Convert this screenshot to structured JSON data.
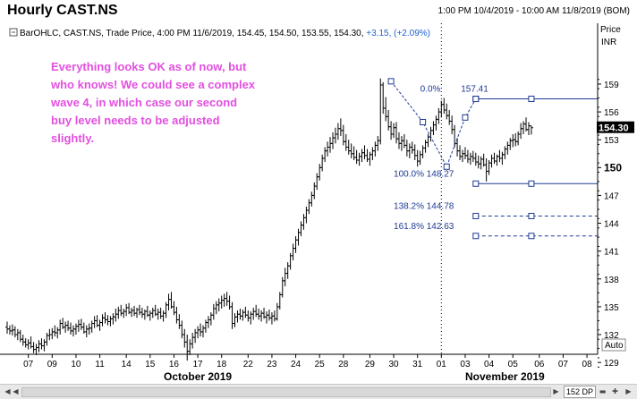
{
  "window": {
    "title": "Hourly CAST.NS",
    "date_range": "1:00 PM 10/4/2019 - 10:00 AM 11/8/2019 (BOM)"
  },
  "legend": {
    "text": "BarOHLC, CAST.NS, Trade Price, 4:00 PM 11/6/2019, 154.45, 154.50, 153.55, 154.30, ",
    "change": "+3.15, (+2.09%)"
  },
  "annotation": {
    "lines": [
      "Everything looks OK as of now, but",
      "who knows! We could see a complex",
      "wave 4, in which case our second",
      "buy level needs to be adjusted",
      "slightly."
    ]
  },
  "axis": {
    "price_label": "Price",
    "unit_label": "INR",
    "auto_label": "Auto",
    "last_price": "154.30"
  },
  "zoom": {
    "dp_label": "152 DP"
  },
  "chart_data": {
    "type": "ohlc",
    "title": "Hourly CAST.NS",
    "ylim": [
      128,
      160
    ],
    "y_ticks": [
      129,
      132,
      135,
      138,
      141,
      144,
      147,
      150,
      153,
      156,
      159
    ],
    "y_tick_labels": [
      "129",
      "132",
      "135",
      "138",
      "141",
      "144",
      "147",
      "150",
      "153",
      "156",
      "159"
    ],
    "bold_tick": "150",
    "x_ticks": [
      {
        "label": "07",
        "idx": 8
      },
      {
        "label": "09",
        "idx": 17
      },
      {
        "label": "10",
        "idx": 26
      },
      {
        "label": "11",
        "idx": 35
      },
      {
        "label": "14",
        "idx": 45
      },
      {
        "label": "15",
        "idx": 54
      },
      {
        "label": "16",
        "idx": 63
      },
      {
        "label": "17",
        "idx": 72
      },
      {
        "label": "18",
        "idx": 81
      },
      {
        "label": "22",
        "idx": 91
      },
      {
        "label": "23",
        "idx": 100
      },
      {
        "label": "24",
        "idx": 109
      },
      {
        "label": "25",
        "idx": 118
      },
      {
        "label": "28",
        "idx": 127
      },
      {
        "label": "29",
        "idx": 137
      },
      {
        "label": "30",
        "idx": 146
      },
      {
        "label": "31",
        "idx": 155
      },
      {
        "label": "01",
        "idx": 164
      },
      {
        "label": "03",
        "idx": 173
      },
      {
        "label": "04",
        "idx": 182
      },
      {
        "label": "05",
        "idx": 191
      },
      {
        "label": "06",
        "idx": 201
      },
      {
        "label": "07",
        "idx": 210
      },
      {
        "label": "08",
        "idx": 219
      }
    ],
    "month_labels": [
      {
        "label": "October 2019",
        "idx": 72
      },
      {
        "label": "November 2019",
        "idx": 188
      }
    ],
    "month_separators": [
      164
    ],
    "x_domain": [
      0,
      221
    ],
    "bars": [
      [
        132.8,
        133.4,
        132.1,
        132.6
      ],
      [
        132.6,
        133.0,
        132.0,
        132.4
      ],
      [
        132.4,
        133.1,
        131.9,
        132.5
      ],
      [
        132.5,
        132.9,
        131.7,
        132.0
      ],
      [
        132.0,
        132.6,
        131.4,
        132.2
      ],
      [
        132.2,
        132.5,
        131.2,
        131.5
      ],
      [
        131.5,
        132.0,
        130.8,
        131.2
      ],
      [
        131.2,
        131.6,
        130.6,
        130.9
      ],
      [
        130.9,
        131.5,
        130.4,
        131.1
      ],
      [
        131.1,
        131.8,
        130.5,
        130.7
      ],
      [
        130.7,
        131.2,
        130.0,
        130.4
      ],
      [
        130.4,
        131.0,
        129.8,
        130.6
      ],
      [
        130.6,
        131.4,
        130.1,
        131.0
      ],
      [
        131.0,
        131.6,
        130.4,
        130.8
      ],
      [
        130.8,
        131.5,
        130.2,
        131.2
      ],
      [
        131.2,
        132.2,
        130.8,
        131.9
      ],
      [
        131.9,
        132.6,
        131.4,
        132.0
      ],
      [
        132.0,
        132.7,
        131.5,
        132.3
      ],
      [
        132.3,
        133.0,
        131.8,
        132.2
      ],
      [
        132.2,
        132.8,
        131.6,
        132.5
      ],
      [
        132.5,
        133.6,
        132.0,
        133.2
      ],
      [
        133.2,
        133.8,
        132.6,
        132.8
      ],
      [
        132.8,
        133.4,
        132.2,
        133.0
      ],
      [
        133.0,
        133.5,
        132.4,
        132.7
      ],
      [
        132.7,
        133.3,
        132.0,
        132.4
      ],
      [
        132.4,
        133.0,
        131.8,
        132.6
      ],
      [
        132.6,
        133.2,
        132.0,
        132.9
      ],
      [
        132.9,
        133.6,
        132.3,
        133.1
      ],
      [
        133.1,
        133.7,
        132.5,
        132.8
      ],
      [
        132.8,
        133.3,
        132.1,
        132.3
      ],
      [
        132.3,
        133.0,
        131.7,
        132.6
      ],
      [
        132.6,
        133.2,
        132.0,
        132.7
      ],
      [
        132.7,
        133.5,
        132.2,
        133.2
      ],
      [
        133.2,
        134.0,
        132.7,
        133.5
      ],
      [
        133.5,
        134.1,
        132.8,
        133.0
      ],
      [
        133.0,
        133.6,
        132.4,
        133.3
      ],
      [
        133.3,
        134.2,
        132.9,
        133.8
      ],
      [
        133.8,
        134.4,
        133.2,
        133.6
      ],
      [
        133.6,
        134.1,
        133.0,
        133.4
      ],
      [
        133.4,
        134.0,
        132.9,
        133.7
      ],
      [
        133.7,
        134.3,
        133.1,
        133.9
      ],
      [
        133.9,
        134.8,
        133.4,
        134.2
      ],
      [
        134.2,
        135.0,
        133.7,
        134.6
      ],
      [
        134.6,
        135.2,
        134.0,
        134.3
      ],
      [
        134.3,
        134.8,
        133.8,
        134.5
      ],
      [
        134.5,
        135.3,
        134.0,
        134.9
      ],
      [
        134.9,
        135.4,
        134.2,
        134.4
      ],
      [
        134.4,
        134.9,
        133.9,
        134.6
      ],
      [
        134.6,
        135.1,
        134.0,
        134.3
      ],
      [
        134.3,
        134.9,
        133.8,
        134.7
      ],
      [
        134.7,
        135.2,
        134.1,
        134.4
      ],
      [
        134.4,
        134.9,
        133.8,
        134.2
      ],
      [
        134.2,
        134.7,
        133.6,
        134.5
      ],
      [
        134.5,
        135.1,
        133.9,
        134.1
      ],
      [
        134.1,
        134.6,
        133.5,
        134.3
      ],
      [
        134.3,
        134.9,
        133.8,
        134.6
      ],
      [
        134.6,
        135.2,
        134.0,
        134.2
      ],
      [
        134.2,
        134.8,
        133.6,
        134.4
      ],
      [
        134.4,
        134.9,
        133.7,
        134.0
      ],
      [
        134.0,
        134.6,
        133.4,
        134.3
      ],
      [
        134.3,
        135.5,
        133.8,
        135.2
      ],
      [
        135.2,
        136.4,
        134.6,
        135.8
      ],
      [
        135.8,
        136.6,
        134.8,
        135.0
      ],
      [
        135.0,
        135.6,
        134.1,
        134.4
      ],
      [
        134.4,
        135.0,
        133.2,
        133.6
      ],
      [
        133.6,
        134.2,
        132.6,
        133.0
      ],
      [
        133.0,
        133.5,
        131.6,
        132.0
      ],
      [
        132.0,
        132.6,
        130.6,
        131.2
      ],
      [
        131.2,
        132.0,
        129.2,
        130.2
      ],
      [
        130.2,
        131.5,
        129.8,
        131.0
      ],
      [
        131.0,
        132.2,
        130.5,
        131.7
      ],
      [
        131.7,
        132.6,
        131.1,
        132.2
      ],
      [
        132.2,
        132.9,
        131.6,
        132.5
      ],
      [
        132.5,
        133.2,
        131.8,
        132.3
      ],
      [
        132.3,
        133.0,
        131.7,
        132.7
      ],
      [
        132.7,
        133.6,
        132.2,
        133.3
      ],
      [
        133.3,
        134.0,
        132.7,
        133.6
      ],
      [
        133.6,
        134.4,
        133.0,
        134.1
      ],
      [
        134.1,
        135.3,
        133.6,
        134.8
      ],
      [
        134.8,
        135.6,
        134.2,
        135.2
      ],
      [
        135.2,
        135.9,
        134.5,
        135.4
      ],
      [
        135.4,
        136.2,
        134.8,
        135.7
      ],
      [
        135.7,
        136.4,
        135.0,
        135.9
      ],
      [
        135.9,
        136.6,
        135.1,
        135.6
      ],
      [
        135.6,
        136.2,
        134.7,
        135.0
      ],
      [
        135.0,
        135.5,
        132.6,
        133.2
      ],
      [
        133.2,
        134.3,
        132.8,
        133.9
      ],
      [
        133.9,
        134.6,
        133.3,
        134.2
      ],
      [
        134.2,
        134.8,
        133.6,
        134.0
      ],
      [
        134.0,
        134.7,
        133.5,
        134.4
      ],
      [
        134.4,
        135.0,
        133.8,
        134.1
      ],
      [
        134.1,
        134.6,
        133.4,
        133.8
      ],
      [
        133.8,
        134.5,
        133.1,
        134.2
      ],
      [
        134.2,
        134.9,
        133.6,
        134.5
      ],
      [
        134.5,
        135.2,
        133.9,
        134.2
      ],
      [
        134.2,
        134.8,
        133.6,
        134.0
      ],
      [
        134.0,
        134.6,
        133.4,
        134.3
      ],
      [
        134.3,
        134.9,
        133.7,
        133.9
      ],
      [
        133.9,
        134.5,
        133.2,
        134.1
      ],
      [
        134.1,
        134.7,
        133.5,
        133.8
      ],
      [
        133.8,
        134.4,
        133.1,
        134.0
      ],
      [
        134.0,
        134.6,
        133.4,
        133.7
      ],
      [
        133.7,
        135.4,
        133.5,
        135.0
      ],
      [
        135.0,
        136.6,
        134.7,
        136.3
      ],
      [
        136.3,
        138.2,
        136.0,
        137.8
      ],
      [
        137.8,
        139.2,
        137.2,
        138.6
      ],
      [
        138.6,
        139.8,
        138.0,
        139.4
      ],
      [
        139.4,
        140.8,
        139.0,
        140.5
      ],
      [
        140.5,
        141.8,
        140.0,
        141.3
      ],
      [
        141.3,
        142.6,
        140.8,
        142.2
      ],
      [
        142.2,
        143.4,
        141.6,
        143.0
      ],
      [
        143.0,
        144.2,
        142.6,
        143.8
      ],
      [
        143.8,
        145.0,
        143.3,
        144.6
      ],
      [
        144.6,
        145.8,
        144.0,
        145.4
      ],
      [
        145.4,
        146.6,
        145.0,
        146.2
      ],
      [
        146.2,
        147.4,
        145.8,
        147.0
      ],
      [
        147.0,
        148.4,
        146.6,
        148.0
      ],
      [
        148.0,
        149.4,
        147.6,
        149.0
      ],
      [
        149.0,
        150.4,
        148.6,
        150.0
      ],
      [
        150.0,
        151.4,
        149.6,
        151.0
      ],
      [
        151.0,
        152.2,
        150.6,
        151.8
      ],
      [
        151.8,
        152.8,
        151.2,
        152.2
      ],
      [
        152.2,
        153.3,
        151.6,
        152.6
      ],
      [
        152.6,
        153.8,
        152.0,
        153.2
      ],
      [
        153.2,
        154.3,
        152.6,
        153.6
      ],
      [
        153.6,
        154.8,
        153.0,
        154.2
      ],
      [
        154.2,
        155.3,
        153.4,
        154.0
      ],
      [
        154.0,
        154.6,
        152.4,
        152.8
      ],
      [
        152.8,
        153.6,
        151.8,
        152.2
      ],
      [
        152.2,
        153.0,
        151.4,
        151.8
      ],
      [
        151.8,
        152.6,
        151.0,
        151.5
      ],
      [
        151.5,
        152.3,
        150.8,
        151.1
      ],
      [
        151.1,
        151.9,
        150.4,
        150.8
      ],
      [
        150.8,
        151.6,
        150.2,
        151.2
      ],
      [
        151.2,
        152.0,
        150.6,
        151.6
      ],
      [
        151.6,
        152.4,
        150.9,
        151.3
      ],
      [
        151.3,
        152.0,
        150.6,
        150.9
      ],
      [
        150.9,
        151.7,
        150.2,
        151.4
      ],
      [
        151.4,
        152.2,
        150.8,
        151.8
      ],
      [
        151.8,
        152.8,
        151.2,
        152.4
      ],
      [
        152.4,
        153.4,
        151.8,
        152.9
      ],
      [
        152.9,
        159.6,
        152.5,
        158.9
      ],
      [
        158.9,
        159.2,
        155.8,
        156.4
      ],
      [
        156.4,
        157.6,
        155.0,
        155.5
      ],
      [
        155.5,
        156.2,
        154.0,
        154.4
      ],
      [
        154.4,
        155.0,
        153.0,
        153.6
      ],
      [
        153.6,
        154.8,
        153.2,
        154.3
      ],
      [
        154.3,
        154.9,
        152.6,
        153.1
      ],
      [
        153.1,
        153.8,
        152.0,
        152.6
      ],
      [
        152.6,
        153.4,
        151.8,
        152.9
      ],
      [
        152.9,
        153.6,
        152.1,
        152.4
      ],
      [
        152.4,
        153.0,
        151.2,
        151.8
      ],
      [
        151.8,
        152.6,
        151.0,
        152.2
      ],
      [
        152.2,
        152.8,
        151.5,
        151.9
      ],
      [
        151.9,
        152.5,
        150.8,
        151.3
      ],
      [
        151.3,
        151.9,
        150.1,
        150.7
      ],
      [
        150.7,
        151.8,
        150.3,
        151.4
      ],
      [
        151.4,
        152.4,
        151.0,
        152.1
      ],
      [
        152.1,
        153.0,
        151.6,
        152.7
      ],
      [
        152.7,
        153.6,
        152.2,
        153.3
      ],
      [
        153.3,
        154.4,
        152.8,
        154.0
      ],
      [
        154.0,
        155.0,
        153.5,
        154.6
      ],
      [
        154.6,
        155.6,
        154.0,
        155.2
      ],
      [
        155.2,
        156.4,
        154.7,
        156.0
      ],
      [
        156.0,
        157.2,
        155.4,
        156.8
      ],
      [
        156.8,
        157.5,
        155.8,
        156.2
      ],
      [
        156.2,
        156.9,
        155.2,
        155.6
      ],
      [
        155.6,
        156.2,
        154.6,
        155.0
      ],
      [
        155.0,
        155.6,
        153.6,
        154.1
      ],
      [
        154.1,
        154.6,
        152.2,
        152.6
      ],
      [
        152.6,
        153.2,
        151.2,
        151.8
      ],
      [
        151.8,
        152.4,
        150.8,
        151.2
      ],
      [
        151.2,
        151.9,
        150.6,
        151.5
      ],
      [
        151.5,
        152.2,
        150.9,
        151.3
      ],
      [
        151.3,
        151.9,
        150.5,
        150.9
      ],
      [
        150.9,
        151.6,
        150.3,
        151.2
      ],
      [
        151.2,
        151.8,
        150.6,
        151.0
      ],
      [
        151.0,
        151.6,
        150.2,
        150.6
      ],
      [
        150.6,
        151.3,
        149.9,
        150.4
      ],
      [
        150.4,
        151.2,
        149.8,
        150.9
      ],
      [
        150.9,
        151.5,
        150.1,
        150.3
      ],
      [
        150.3,
        151.0,
        148.5,
        149.6
      ],
      [
        149.6,
        150.8,
        149.2,
        150.5
      ],
      [
        150.5,
        151.4,
        150.0,
        151.0
      ],
      [
        151.0,
        151.6,
        150.4,
        150.7
      ],
      [
        150.7,
        151.4,
        150.2,
        151.2
      ],
      [
        151.2,
        151.9,
        150.6,
        151.0
      ],
      [
        151.0,
        151.7,
        150.3,
        151.4
      ],
      [
        151.4,
        152.3,
        150.9,
        152.0
      ],
      [
        152.0,
        152.8,
        151.4,
        152.4
      ],
      [
        152.4,
        153.2,
        151.9,
        152.9
      ],
      [
        152.9,
        153.6,
        152.2,
        153.0
      ],
      [
        153.0,
        153.7,
        152.3,
        152.8
      ],
      [
        152.8,
        153.9,
        152.4,
        153.6
      ],
      [
        153.6,
        154.8,
        153.1,
        154.2
      ],
      [
        154.2,
        155.0,
        153.6,
        154.7
      ],
      [
        154.7,
        155.4,
        153.9,
        154.1
      ],
      [
        154.1,
        154.9,
        153.5,
        154.5
      ],
      [
        154.5,
        154.5,
        153.55,
        154.3
      ]
    ],
    "fib_levels": [
      {
        "label": "0.0%",
        "value": 157.41,
        "value_label": "157.41",
        "style": "solid",
        "x_start": 177,
        "label_idx": 156
      },
      {
        "label": "100.0%",
        "value": 148.27,
        "value_label": "148.27",
        "style": "solid",
        "x_start": 177,
        "label_idx": 146
      },
      {
        "label": "138.2%",
        "value": 144.78,
        "value_label": "144.78",
        "style": "dashed",
        "x_start": 177,
        "label_idx": 146
      },
      {
        "label": "161.8%",
        "value": 142.63,
        "value_label": "142.63",
        "style": "dashed",
        "x_start": 177,
        "label_idx": 146
      }
    ],
    "fib_markers_idx": [
      177,
      198
    ],
    "wave_path": [
      [
        145,
        159.3
      ],
      [
        157,
        154.9
      ],
      [
        166,
        150.1
      ],
      [
        173,
        155.4
      ],
      [
        177,
        157.4
      ]
    ],
    "colors": {
      "bars": "#000000",
      "fib": "#1f3a93",
      "annotation": "#e34fe0",
      "axis_text": "#000000",
      "last_price_bg": "#000000",
      "last_price_fg": "#ffffff"
    }
  }
}
